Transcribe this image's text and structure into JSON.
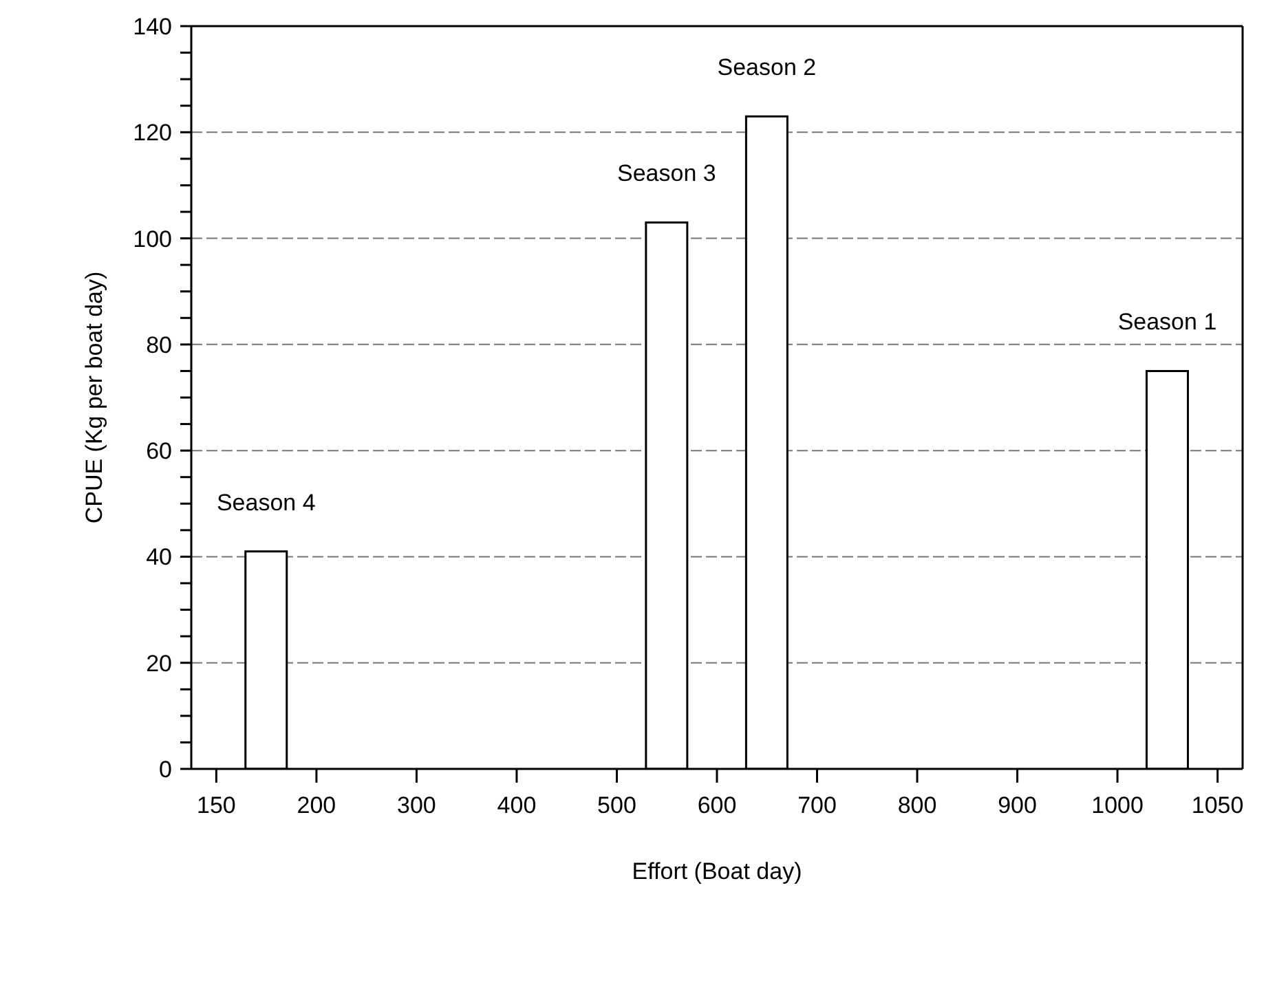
{
  "chart_data": {
    "type": "bar",
    "xlabel": "Effort (Boat day)",
    "ylabel": "CPUE (Kg per boat day)",
    "categories": [
      "150",
      null,
      "200",
      null,
      "300",
      null,
      "400",
      null,
      "500",
      null,
      "600",
      null,
      "700",
      null,
      "800",
      null,
      "900",
      null,
      "1000",
      null,
      "1050"
    ],
    "values": [
      null,
      41,
      null,
      null,
      null,
      null,
      null,
      null,
      null,
      103,
      null,
      123,
      null,
      null,
      null,
      null,
      null,
      null,
      null,
      75,
      null
    ],
    "color": "#ffffff",
    "ylim": [
      0,
      140
    ],
    "yticks": [
      0,
      {
        "value": 5,
        "label": null
      },
      {
        "value": 10,
        "label": null
      },
      {
        "value": 15,
        "label": null
      },
      20,
      {
        "value": 25,
        "label": null
      },
      {
        "value": 30,
        "label": null
      },
      {
        "value": 35,
        "label": null
      },
      40,
      {
        "value": 45,
        "label": null
      },
      {
        "value": 50,
        "label": null
      },
      {
        "value": 55,
        "label": null
      },
      60,
      {
        "value": 65,
        "label": null
      },
      {
        "value": 70,
        "label": null
      },
      {
        "value": 75,
        "label": null
      },
      80,
      {
        "value": 85,
        "label": null
      },
      {
        "value": 90,
        "label": null
      },
      {
        "value": 95,
        "label": null
      },
      100,
      {
        "value": 105,
        "label": null
      },
      {
        "value": 110,
        "label": null
      },
      {
        "value": 115,
        "label": null
      },
      120,
      {
        "value": 125,
        "label": null
      },
      {
        "value": 130,
        "label": null
      },
      {
        "value": 135,
        "label": null
      },
      140
    ],
    "grid": "y",
    "legend": false,
    "annotations": [
      "Season 4",
      "Season 3",
      "Season 2",
      "Season 1"
    ]
  }
}
